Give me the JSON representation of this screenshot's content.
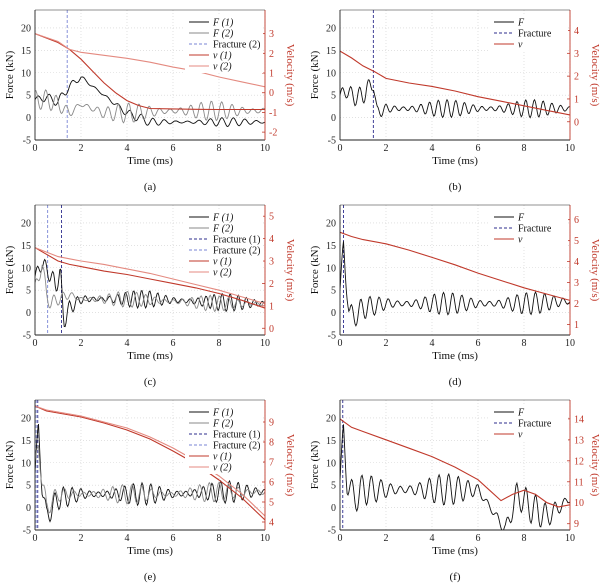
{
  "figure": {
    "panels": [
      {
        "caption": "(a)",
        "x_label": "Time (ms)",
        "y_label": "Force (kN)",
        "y2_label": "Velocity (m/s)",
        "xlim": [
          0,
          10
        ],
        "ylim": [
          -5,
          24
        ],
        "y2lim": [
          -2.4,
          4.2
        ],
        "xticks": [
          "0",
          "2",
          "4",
          "6",
          "8",
          "10"
        ],
        "yticks": [
          "-5",
          "0",
          "5",
          "10",
          "15",
          "20"
        ],
        "y2ticks": [
          "-2",
          "-1",
          "0",
          "1",
          "2",
          "3"
        ],
        "fractures": [
          1.4
        ],
        "legend": [
          {
            "label": "F (1)",
            "kind": "F1"
          },
          {
            "label": "F (2)",
            "kind": "F2"
          },
          {
            "label": "Fracture (2)",
            "kind": "fr2"
          },
          {
            "label": "v (1)",
            "kind": "v1"
          },
          {
            "label": "v (2)",
            "kind": "v2"
          }
        ],
        "velocity_series": [
          {
            "kind": "v1",
            "x": [
              0,
              1,
              1.5,
              2,
              2.5,
              3,
              3.5,
              4,
              4.5,
              5,
              6,
              7,
              8,
              9,
              10
            ],
            "y": [
              3.0,
              2.55,
              2.2,
              1.7,
              1.1,
              0.5,
              0.0,
              -0.4,
              -0.65,
              -0.8,
              -0.82,
              -0.84,
              -0.85,
              -0.85,
              -0.85
            ]
          },
          {
            "kind": "v2",
            "x": [
              0,
              1,
              1.5,
              2,
              3,
              4,
              5,
              6,
              7,
              8,
              9,
              10
            ],
            "y": [
              3.0,
              2.6,
              2.2,
              2.05,
              1.9,
              1.75,
              1.55,
              1.3,
              1.1,
              0.8,
              0.55,
              0.3
            ]
          }
        ],
        "force_base": [
          {
            "kind": "F1",
            "x": [
              0,
              0.5,
              1,
              1.5,
              2,
              2.5,
              3,
              3.5,
              4,
              5,
              6,
              8,
              10
            ],
            "y": [
              4,
              4.5,
              3.5,
              7,
              9,
              7,
              5,
              3,
              1,
              -1,
              -1,
              -1,
              -1
            ],
            "osc": 1.0,
            "period": 0.5
          },
          {
            "kind": "F2",
            "x": [
              0,
              0.5,
              1,
              1.5,
              2,
              3,
              4,
              6,
              8,
              10
            ],
            "y": [
              4,
              4,
              3,
              1,
              3,
              1,
              1,
              1.5,
              1.5,
              1.5
            ],
            "osc": 2.2,
            "period": 0.45
          }
        ]
      },
      {
        "caption": "(b)",
        "x_label": "Time (ms)",
        "y_label": "Force (kN)",
        "y2_label": "Velocity (m/s)",
        "xlim": [
          0,
          10
        ],
        "ylim": [
          -5,
          24
        ],
        "y2lim": [
          -0.8,
          4.9
        ],
        "xticks": [
          "0",
          "2",
          "4",
          "6",
          "8",
          "10"
        ],
        "yticks": [
          "-5",
          "0",
          "5",
          "10",
          "15",
          "20"
        ],
        "y2ticks": [
          "0",
          "1",
          "2",
          "3",
          "4"
        ],
        "fractures": [
          1.45
        ],
        "legend": [
          {
            "label": "F",
            "kind": "F"
          },
          {
            "label": "Fracture",
            "kind": "fr1"
          },
          {
            "label": "v",
            "kind": "v1"
          }
        ],
        "velocity_series": [
          {
            "kind": "v1",
            "x": [
              0,
              0.5,
              1,
              1.5,
              2,
              3,
              4,
              5,
              6,
              7,
              8,
              9,
              10
            ],
            "y": [
              3.1,
              2.8,
              2.45,
              2.2,
              1.9,
              1.7,
              1.55,
              1.35,
              1.1,
              0.9,
              0.7,
              0.5,
              0.3
            ]
          }
        ],
        "force_base": [
          {
            "kind": "F",
            "x": [
              0,
              0.3,
              0.6,
              1,
              1.45,
              1.6,
              2,
              3,
              4,
              6,
              8,
              10
            ],
            "y": [
              5,
              6,
              4.5,
              5,
              8,
              1,
              2,
              2,
              2,
              2,
              2,
              2
            ],
            "osc": 2.0,
            "period": 0.38
          }
        ]
      },
      {
        "caption": "(c)",
        "x_label": "Time (ms)",
        "y_label": "Force (kN)",
        "y2_label": "Velocity (m/s)",
        "xlim": [
          0,
          10
        ],
        "ylim": [
          -5,
          24
        ],
        "y2lim": [
          -0.3,
          5.5
        ],
        "xticks": [
          "0",
          "2",
          "4",
          "6",
          "8",
          "10"
        ],
        "yticks": [
          "-5",
          "0",
          "5",
          "10",
          "15",
          "20"
        ],
        "y2ticks": [
          "0",
          "1",
          "2",
          "3",
          "4",
          "5"
        ],
        "fractures": [
          0.55,
          1.15
        ],
        "legend": [
          {
            "label": "F (1)",
            "kind": "F1"
          },
          {
            "label": "F (2)",
            "kind": "F2"
          },
          {
            "label": "Fracture (1)",
            "kind": "fr1"
          },
          {
            "label": "Fracture (2)",
            "kind": "fr2"
          },
          {
            "label": "v (1)",
            "kind": "v1"
          },
          {
            "label": "v (2)",
            "kind": "v2"
          }
        ],
        "velocity_series": [
          {
            "kind": "v1",
            "x": [
              0,
              0.5,
              1,
              1.5,
              2,
              3,
              4,
              5,
              6,
              7,
              8,
              9,
              10
            ],
            "y": [
              3.6,
              3.3,
              3.0,
              2.85,
              2.75,
              2.55,
              2.4,
              2.2,
              2.0,
              1.8,
              1.55,
              1.25,
              0.9
            ]
          },
          {
            "kind": "v2",
            "x": [
              0,
              0.5,
              1,
              1.5,
              2,
              3,
              4,
              5,
              6,
              7,
              8,
              9,
              10
            ],
            "y": [
              3.6,
              3.4,
              3.2,
              3.1,
              3.0,
              2.85,
              2.65,
              2.45,
              2.2,
              1.95,
              1.7,
              1.4,
              1.1
            ]
          }
        ],
        "force_base": [
          {
            "kind": "F1",
            "x": [
              0,
              0.3,
              0.6,
              0.9,
              1.1,
              1.25,
              1.5,
              2,
              3,
              5,
              7,
              10
            ],
            "y": [
              8,
              11,
              9,
              6,
              9,
              -2,
              1,
              3,
              3,
              3,
              2.5,
              2
            ],
            "osc": 2.0,
            "period": 0.35
          },
          {
            "kind": "F2",
            "x": [
              0,
              0.3,
              0.5,
              0.7,
              1,
              1.5,
              2,
              4,
              6,
              8,
              10
            ],
            "y": [
              5,
              11,
              4,
              2,
              3,
              4,
              3,
              3,
              2.5,
              2,
              2
            ],
            "osc": 1.8,
            "period": 0.4
          }
        ]
      },
      {
        "caption": "(d)",
        "x_label": "Time (ms)",
        "y_label": "Force (kN)",
        "y2_label": "Velocity (m/s)",
        "xlim": [
          0,
          10
        ],
        "ylim": [
          -5,
          24
        ],
        "y2lim": [
          0.5,
          6.7
        ],
        "xticks": [
          "0",
          "2",
          "4",
          "6",
          "8",
          "10"
        ],
        "yticks": [
          "-5",
          "0",
          "5",
          "10",
          "15",
          "20"
        ],
        "y2ticks": [
          "1",
          "2",
          "3",
          "4",
          "5",
          "6"
        ],
        "fractures": [
          0.15
        ],
        "legend": [
          {
            "label": "F",
            "kind": "F"
          },
          {
            "label": "Fracture",
            "kind": "fr1"
          },
          {
            "label": "v",
            "kind": "v1"
          }
        ],
        "velocity_series": [
          {
            "kind": "v1",
            "x": [
              0,
              0.5,
              1,
              2,
              3,
              4,
              5,
              6,
              7,
              8,
              9,
              10
            ],
            "y": [
              5.4,
              5.2,
              5.05,
              4.85,
              4.55,
              4.2,
              3.85,
              3.45,
              3.1,
              2.75,
              2.45,
              2.15
            ]
          }
        ],
        "force_base": [
          {
            "kind": "F",
            "x": [
              0,
              0.15,
              0.25,
              0.4,
              0.6,
              1,
              2,
              4,
              6,
              8,
              10
            ],
            "y": [
              5,
              15,
              8,
              0,
              -1,
              1,
              2,
              2,
              2,
              2,
              2.5
            ],
            "osc": 2.5,
            "period": 0.4
          }
        ]
      },
      {
        "caption": "(e)",
        "x_label": "Time (ms)",
        "y_label": "Force (kN)",
        "y2_label": "Velocity (m/s)",
        "xlim": [
          0,
          10
        ],
        "ylim": [
          -5,
          24
        ],
        "y2lim": [
          3.6,
          10.1
        ],
        "xticks": [
          "0",
          "2",
          "4",
          "6",
          "8",
          "10"
        ],
        "yticks": [
          "-5",
          "0",
          "5",
          "10",
          "15",
          "20"
        ],
        "y2ticks": [
          "4",
          "5",
          "6",
          "7",
          "8",
          "9"
        ],
        "fractures": [
          0.05,
          0.12
        ],
        "legend": [
          {
            "label": "F (1)",
            "kind": "F1"
          },
          {
            "label": "F (2)",
            "kind": "F2"
          },
          {
            "label": "Fracture (1)",
            "kind": "fr1"
          },
          {
            "label": "Fracture (2)",
            "kind": "fr2"
          },
          {
            "label": "v (1)",
            "kind": "v1"
          },
          {
            "label": "v (2)",
            "kind": "v2"
          }
        ],
        "velocity_series": [
          {
            "kind": "v1",
            "x": [
              0,
              0.5,
              1,
              2,
              3,
              4,
              5,
              6,
              7,
              8,
              9,
              10
            ],
            "y": [
              9.8,
              9.55,
              9.45,
              9.25,
              8.95,
              8.6,
              8.15,
              7.55,
              6.9,
              6.1,
              5.2,
              4.1
            ]
          },
          {
            "kind": "v2",
            "x": [
              0,
              0.5,
              1,
              2,
              3,
              4,
              5,
              6,
              7,
              8,
              9,
              10
            ],
            "y": [
              9.8,
              9.6,
              9.5,
              9.3,
              9.0,
              8.7,
              8.25,
              7.7,
              7.05,
              6.3,
              5.4,
              4.3
            ]
          }
        ],
        "force_base": [
          {
            "kind": "F1",
            "x": [
              0,
              0.15,
              0.3,
              0.5,
              1,
              2,
              4,
              6,
              8,
              10
            ],
            "y": [
              8,
              18,
              5,
              -2,
              2,
              3,
              3,
              3,
              3.5,
              3.5
            ],
            "osc": 2.5,
            "period": 0.38
          },
          {
            "kind": "F2",
            "x": [
              0,
              0.15,
              0.3,
              0.5,
              1,
              2,
              4,
              6,
              8,
              10
            ],
            "y": [
              8,
              15,
              6,
              0,
              3,
              3,
              3,
              3,
              3.5,
              3.5
            ],
            "osc": 2.2,
            "period": 0.42
          }
        ]
      },
      {
        "caption": "(f)",
        "x_label": "Time (ms)",
        "y_label": "Force (kN)",
        "y2_label": "Velocity (m/s)",
        "xlim": [
          0,
          10
        ],
        "ylim": [
          -5,
          24
        ],
        "y2lim": [
          8.7,
          14.9
        ],
        "xticks": [
          "0",
          "2",
          "4",
          "6",
          "8",
          "10"
        ],
        "yticks": [
          "-5",
          "0",
          "5",
          "10",
          "15",
          "20"
        ],
        "y2ticks": [
          "9",
          "10",
          "11",
          "12",
          "13",
          "14"
        ],
        "fractures": [
          0.12
        ],
        "legend": [
          {
            "label": "F",
            "kind": "F"
          },
          {
            "label": "Fracture",
            "kind": "fr1"
          },
          {
            "label": "v",
            "kind": "v1"
          }
        ],
        "velocity_series": [
          {
            "kind": "v1",
            "x": [
              0,
              0.5,
              1,
              2,
              3,
              4,
              5,
              6,
              6.5,
              7,
              7.5,
              8,
              8.5,
              9,
              9.5,
              10
            ],
            "y": [
              14.0,
              13.6,
              13.4,
              13.0,
              12.6,
              12.2,
              11.7,
              11.1,
              10.6,
              10.1,
              10.4,
              10.6,
              10.4,
              10.0,
              9.8,
              9.9
            ]
          }
        ],
        "force_base": [
          {
            "kind": "F",
            "x": [
              0,
              0.15,
              0.3,
              0.6,
              1,
              2,
              4,
              6,
              6.8,
              7.2,
              7.7,
              8.3,
              9,
              9.5,
              10
            ],
            "y": [
              6,
              17,
              6,
              2,
              4,
              4,
              4,
              4,
              -2,
              -5,
              3,
              0,
              -2,
              0,
              2
            ],
            "osc": 3.5,
            "period": 0.42
          }
        ]
      }
    ]
  }
}
